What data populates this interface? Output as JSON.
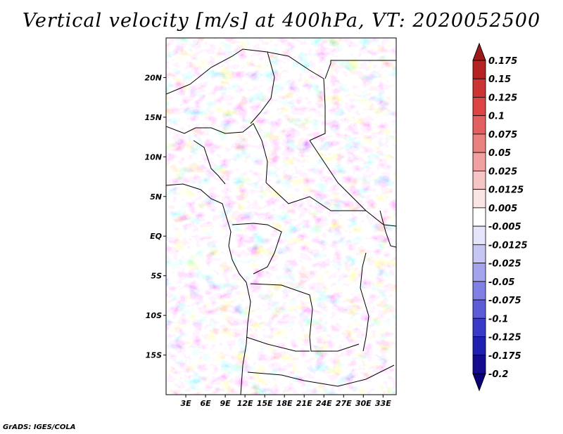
{
  "title": "Vertical velocity [m/s] at 400hPa, VT: 2020052500",
  "credit": "GrADS: IGES/COLA",
  "map": {
    "region": "Central Africa",
    "lon_range": [
      0,
      35
    ],
    "lat_range": [
      -20,
      25
    ],
    "lon_ticks": [
      "3E",
      "6E",
      "9E",
      "12E",
      "15E",
      "18E",
      "21E",
      "24E",
      "27E",
      "30E",
      "33E"
    ],
    "lon_tick_values": [
      3,
      6,
      9,
      12,
      15,
      18,
      21,
      24,
      27,
      30,
      33
    ],
    "lat_ticks": [
      "20N",
      "15N",
      "10N",
      "5N",
      "EQ",
      "5S",
      "10S",
      "15S"
    ],
    "lat_tick_values": [
      20,
      15,
      10,
      5,
      0,
      -5,
      -10,
      -15
    ]
  },
  "colorbar": {
    "labels": [
      "0.175",
      "0.15",
      "0.125",
      "0.1",
      "0.075",
      "0.05",
      "0.025",
      "0.0125",
      "0.005",
      "-0.005",
      "-0.0125",
      "-0.025",
      "-0.05",
      "-0.075",
      "-0.1",
      "-0.125",
      "-0.175",
      "-0.2"
    ],
    "colors": [
      "#9e1a1a",
      "#b52222",
      "#cc3333",
      "#dd4444",
      "#e46060",
      "#e88080",
      "#f0a0a0",
      "#f6c6c6",
      "#fbe4e4",
      "#ffffff",
      "#e4e4fb",
      "#c6c6f4",
      "#a4a4ee",
      "#8080e4",
      "#5c5cd8",
      "#3a3ac8",
      "#2020b0",
      "#140c90",
      "#0a0078"
    ]
  }
}
